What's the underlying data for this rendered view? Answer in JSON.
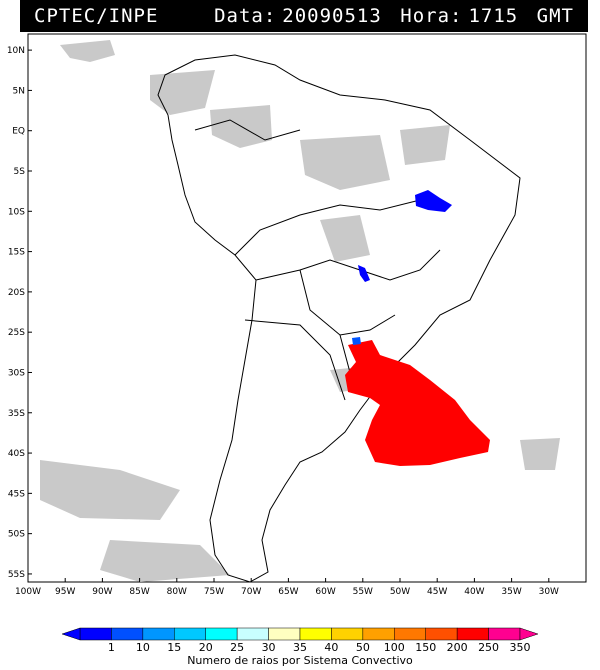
{
  "header": {
    "source": "CPTEC/INPE",
    "date_label": "Data:",
    "date_value": "20090513",
    "time_label": "Hora:",
    "time_value": "1715",
    "time_zone": "GMT"
  },
  "map": {
    "lon_range": [
      -100,
      -25
    ],
    "lat_range": [
      -56,
      12
    ],
    "lat_labels": [
      "10N",
      "5N",
      "EQ",
      "5S",
      "10S",
      "15S",
      "20S",
      "25S",
      "30S",
      "35S",
      "40S",
      "45S",
      "50S",
      "55S"
    ],
    "lat_values": [
      10,
      5,
      0,
      -5,
      -10,
      -15,
      -20,
      -25,
      -30,
      -35,
      -40,
      -45,
      -50,
      -55
    ],
    "lon_labels": [
      "100W",
      "95W",
      "90W",
      "85W",
      "80W",
      "75W",
      "70W",
      "65W",
      "60W",
      "55W",
      "50W",
      "45W",
      "40W",
      "35W",
      "30W"
    ],
    "lon_values": [
      -100,
      -95,
      -90,
      -85,
      -80,
      -75,
      -70,
      -65,
      -60,
      -55,
      -50,
      -45,
      -40,
      -35,
      -30
    ],
    "colors": {
      "cloud": "#c8c8c8",
      "coast": "#000000",
      "storm_high": "#ff0000",
      "storm_low": "#0000ff",
      "storm_mid": "#0055ff"
    }
  },
  "legend": {
    "title": "Numero de raios por Sistema Convectivo",
    "ticks": [
      "1",
      "10",
      "15",
      "20",
      "25",
      "30",
      "35",
      "40",
      "50",
      "100",
      "150",
      "200",
      "250",
      "350"
    ],
    "colors": [
      "#0000ff",
      "#0050ff",
      "#0096ff",
      "#00c8ff",
      "#00ffff",
      "#c8ffff",
      "#ffffc0",
      "#ffff00",
      "#ffd200",
      "#ffa000",
      "#ff7800",
      "#ff5000",
      "#ff0000",
      "#ff0090"
    ]
  }
}
